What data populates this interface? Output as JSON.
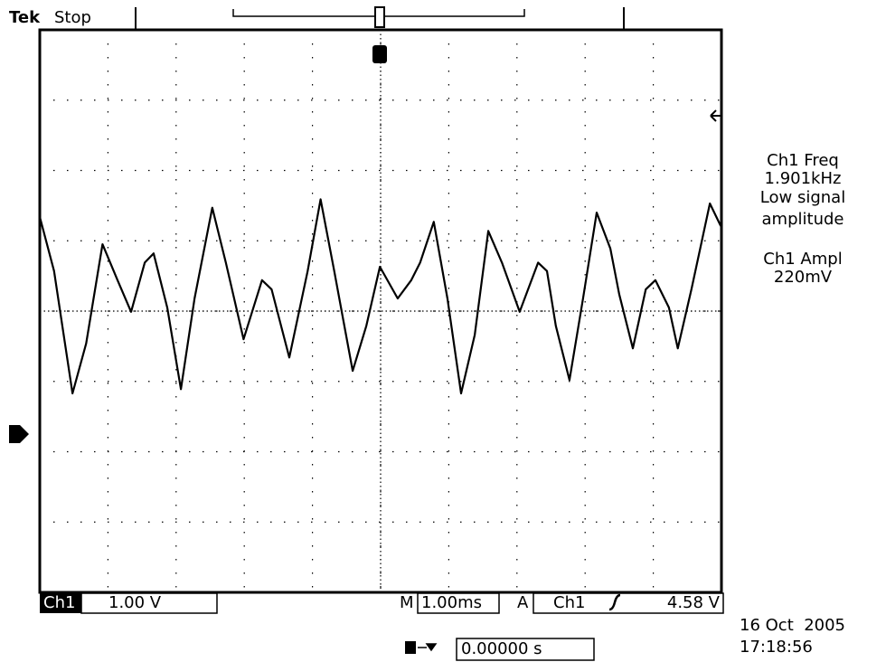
{
  "chart_data": {
    "type": "line",
    "brand": "Tek",
    "status": "Stop",
    "measurements": [
      "Ch1 Freq",
      "1.901kHz",
      "Low signal",
      "amplitude",
      "Ch1 Ampl",
      "220mV"
    ],
    "channel": "Ch1",
    "volts_per_div": "1.00 V",
    "time_prefix": "M",
    "time_per_div": "1.00ms",
    "trigger_prefix": "A",
    "trigger_source": "Ch1",
    "trigger_level": "4.58 V",
    "delay": "0.00000 s",
    "date": "16 Oct  2005",
    "time": "17:18:56",
    "x": [
      0,
      0.21,
      0.48,
      0.68,
      0.92,
      1.14,
      1.34,
      1.54,
      1.67,
      1.87,
      2.07,
      2.27,
      2.53,
      2.73,
      2.99,
      3.26,
      3.4,
      3.66,
      3.93,
      4.12,
      4.32,
      4.59,
      4.79,
      4.99,
      5.25,
      5.45,
      5.58,
      5.78,
      5.98,
      6.18,
      6.38,
      6.58,
      6.78,
      7.04,
      7.31,
      7.44,
      7.57,
      7.77,
      7.97,
      8.17,
      8.37,
      8.5,
      8.7,
      8.89,
      9.03,
      9.23,
      9.36,
      9.56,
      9.83,
      9.99
    ],
    "values": [
      3.09,
      2.32,
      0.58,
      1.29,
      2.7,
      2.19,
      1.74,
      2.44,
      2.57,
      1.8,
      0.64,
      1.93,
      3.22,
      2.44,
      1.35,
      2.19,
      2.06,
      1.09,
      2.32,
      3.34,
      2.32,
      0.9,
      1.54,
      2.38,
      1.93,
      2.19,
      2.44,
      3.02,
      1.93,
      0.58,
      1.41,
      2.89,
      2.44,
      1.74,
      2.44,
      2.32,
      1.54,
      0.77,
      1.93,
      3.15,
      2.64,
      1.99,
      1.22,
      2.06,
      2.19,
      1.8,
      1.22,
      2.06,
      3.28,
      2.96
    ],
    "color": "#000000",
    "xlim": [
      0,
      10
    ],
    "ylim": [
      -2.25,
      5.75
    ],
    "grid": true
  }
}
